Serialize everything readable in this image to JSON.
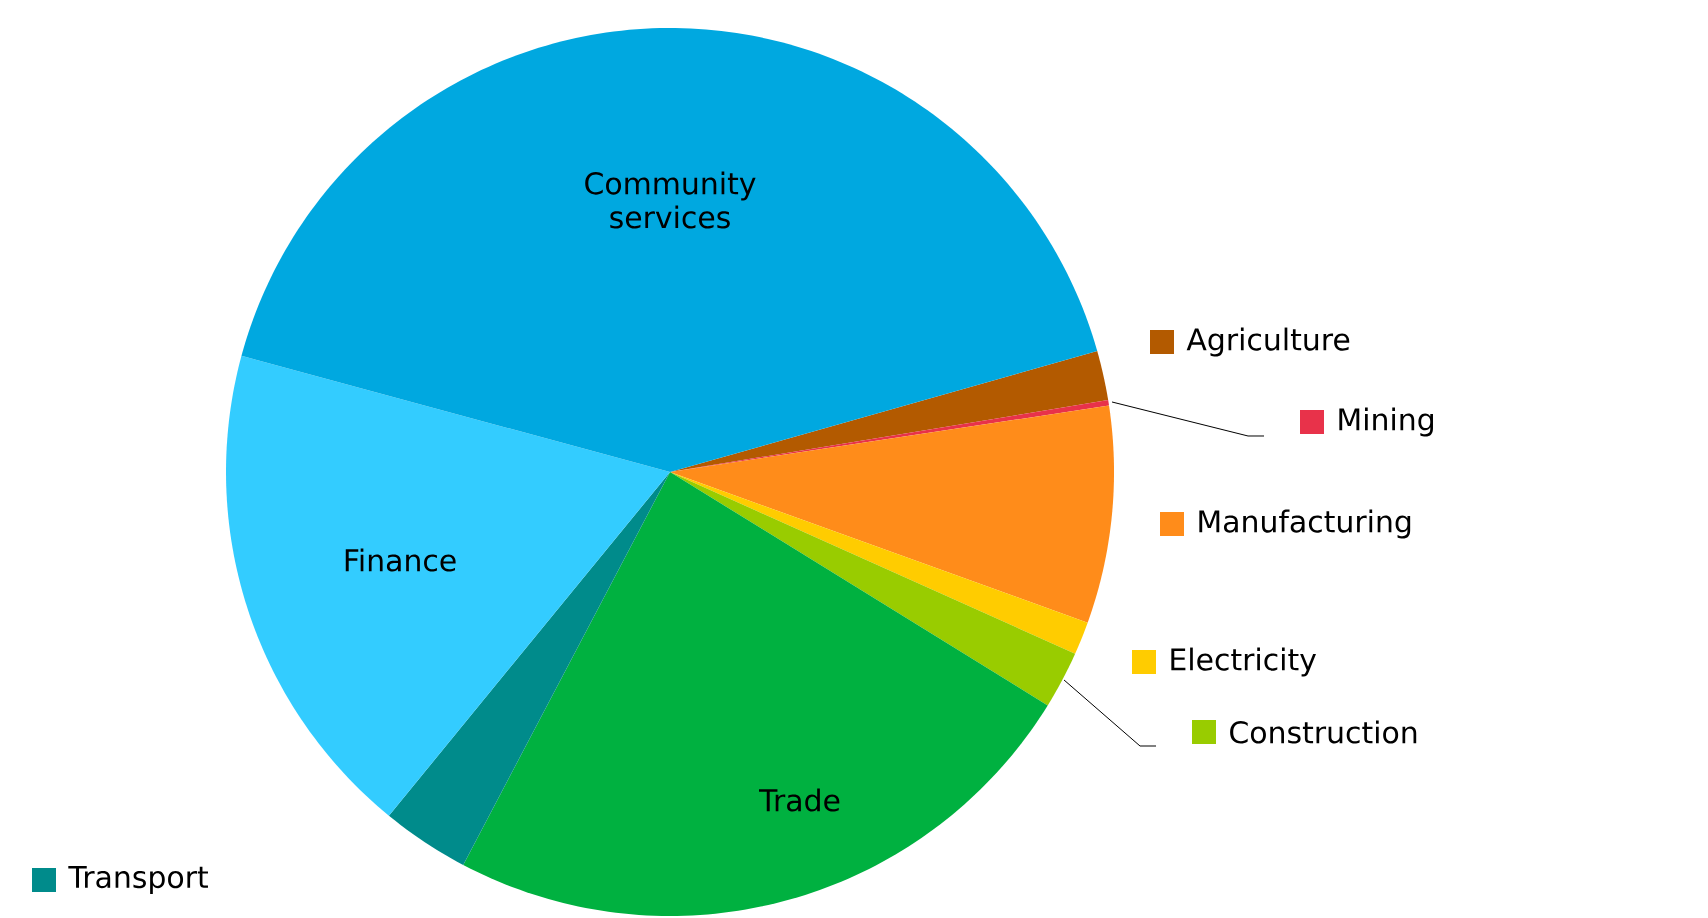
{
  "chart_data": {
    "type": "pie",
    "categories": [
      "Agriculture",
      "Mining",
      "Manufacturing",
      "Electricity",
      "Construction",
      "Trade",
      "Transport",
      "Finance",
      "Community services"
    ],
    "values": [
      1.8,
      0.2,
      7.9,
      1.2,
      2.1,
      23.9,
      3.2,
      18.3,
      41.4
    ],
    "colors": [
      "#b35a00",
      "#e8324a",
      "#ff8c1a",
      "#ffcc00",
      "#99cc00",
      "#00b140",
      "#008b8b",
      "#33ccff",
      "#00a8e0"
    ],
    "legend": "right"
  }
}
